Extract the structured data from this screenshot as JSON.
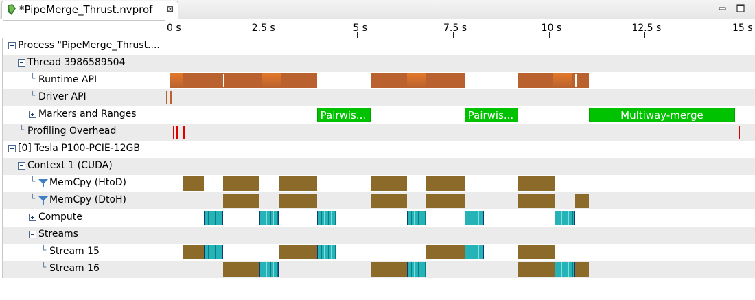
{
  "tab": {
    "title": "*PipeMerge_Thrust.nvprof",
    "close_glyph": "⊠",
    "icon": "nvprof-file-icon"
  },
  "window_controls": {
    "minimize": "minimize-icon",
    "maximize": "maximize-icon"
  },
  "ruler": {
    "ticks": [
      "0 s",
      "2.5 s",
      "5 s",
      "7.5 s",
      "10 s",
      "12.5 s",
      "15 s"
    ]
  },
  "tree": {
    "process": "Process \"PipeMerge_Thrust....",
    "thread": "Thread 3986589504",
    "runtime_api": "Runtime API",
    "driver_api": "Driver API",
    "markers": "Markers and Ranges",
    "overhead": "Profiling Overhead",
    "device": "[0] Tesla P100-PCIE-12GB",
    "context": "Context 1 (CUDA)",
    "memcpy_htod": "MemCpy (HtoD)",
    "memcpy_dtoh": "MemCpy (DtoH)",
    "compute": "Compute",
    "streams": "Streams",
    "stream15": "Stream 15",
    "stream16": "Stream 16"
  },
  "markers": [
    "Pairwis...",
    "Pairwis...",
    "Multiway-merge"
  ],
  "colors": {
    "runtime": "#b9622f",
    "runtime_hi": "#e2782a",
    "memcpy": "#8b6a2a",
    "kernel": "#25b3b8",
    "marker": "#00c200",
    "overhead": "#e00000",
    "row_alt": "#ebebeb"
  }
}
